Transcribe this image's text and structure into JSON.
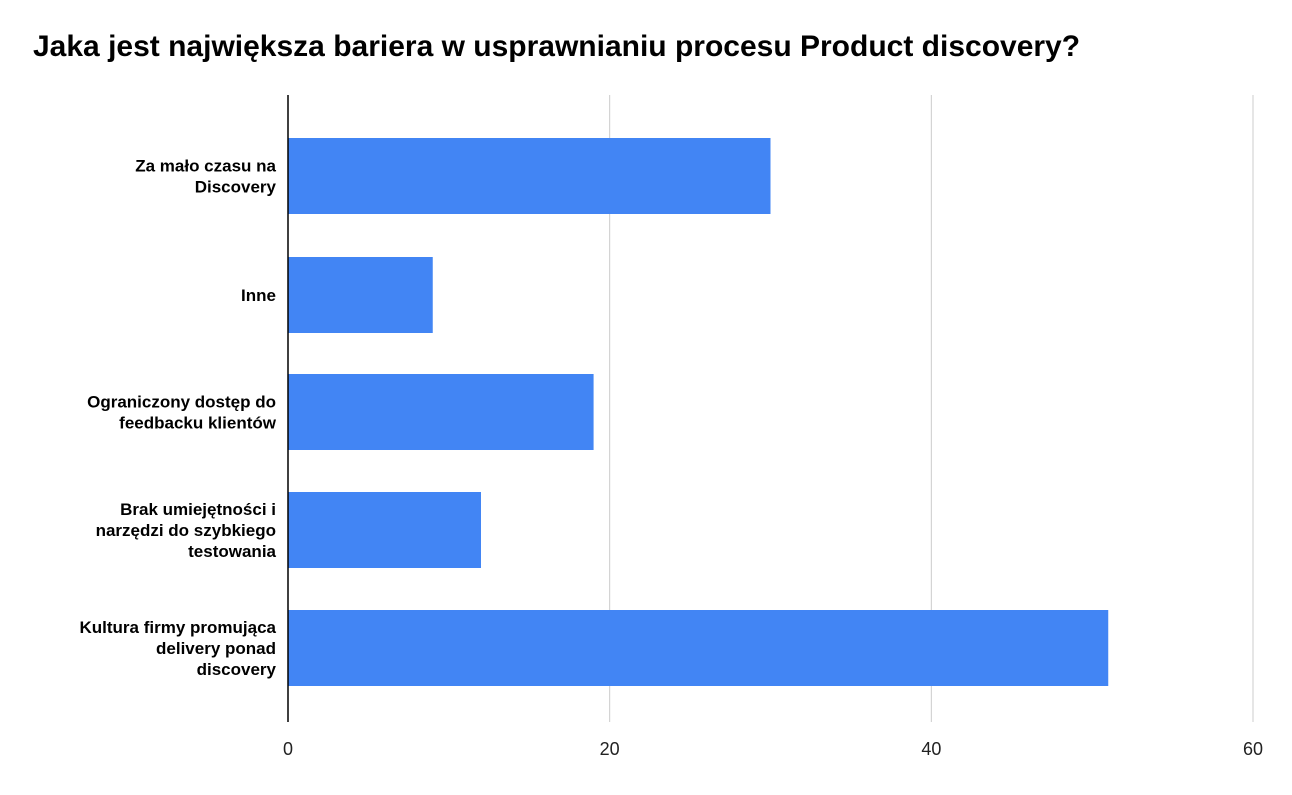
{
  "chart_data": {
    "type": "bar",
    "orientation": "horizontal",
    "title": "Jaka jest największa bariera w usprawnianiu procesu Product discovery?",
    "xlabel": "",
    "ylabel": "",
    "categories": [
      [
        "Za mało czasu na",
        "Discovery"
      ],
      [
        "Inne"
      ],
      [
        "Ograniczony dostęp do",
        "feedbacku klientów"
      ],
      [
        "Brak umiejętności i",
        "narzędzi do szybkiego",
        "testowania"
      ],
      [
        "Kultura firmy promująca",
        "delivery ponad",
        "discovery"
      ]
    ],
    "values": [
      30,
      9,
      19,
      12,
      51
    ],
    "xlim": [
      0,
      60
    ],
    "xticks": [
      "0",
      "20",
      "40",
      "60"
    ],
    "grid": "vertical",
    "legend": "none",
    "bar_color": "#4285f4",
    "grid_color": "#cccccc",
    "axis_color": "#000000"
  }
}
